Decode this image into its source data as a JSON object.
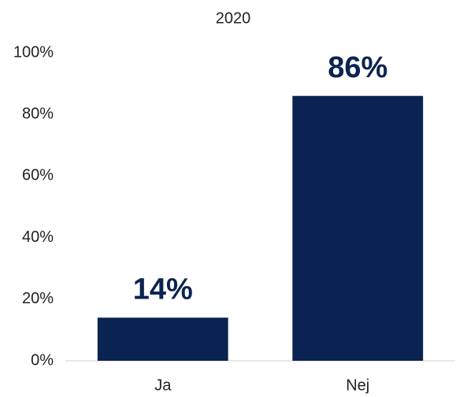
{
  "chart_data": {
    "type": "bar",
    "title": "2020",
    "categories": [
      "Ja",
      "Nej"
    ],
    "values": [
      14,
      86
    ],
    "value_labels": [
      "14%",
      "86%"
    ],
    "color": "#0b2350",
    "ylim": [
      0,
      100
    ],
    "yticks": [
      {
        "value": 0,
        "label": "0%"
      },
      {
        "value": 20,
        "label": "20%"
      },
      {
        "value": 40,
        "label": "40%"
      },
      {
        "value": 60,
        "label": "60%"
      },
      {
        "value": 80,
        "label": "80%"
      },
      {
        "value": 100,
        "label": "100%"
      }
    ],
    "grid": false
  }
}
